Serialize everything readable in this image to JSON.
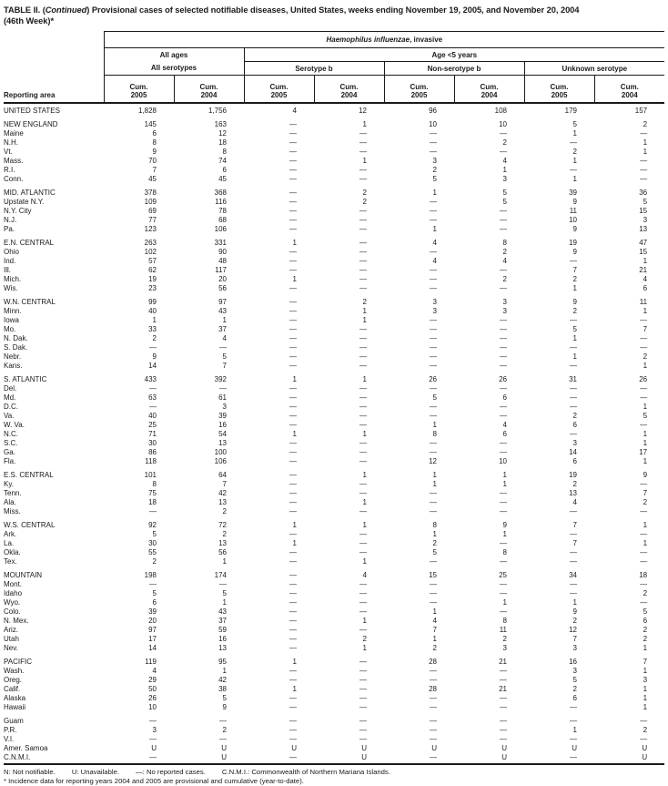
{
  "title": {
    "pre": "TABLE II. (",
    "continued": "Continued",
    "post": ") Provisional cases of selected notifiable diseases, United States, weeks ending November 19, 2005, and November 20, 2004",
    "line2": "(46th Week)*"
  },
  "header": {
    "reporting_area": "Reporting area",
    "disease_italic": "Haemophilus influenzae",
    "disease_rest": ", invasive",
    "all_ages": "All ages",
    "age_lt5": "Age <5 years",
    "groups": [
      "All serotypes",
      "Serotype b",
      "Non-serotype b",
      "Unknown serotype"
    ],
    "columns": [
      {
        "top": "Cum.",
        "year": "2005"
      },
      {
        "top": "Cum.",
        "year": "2004"
      },
      {
        "top": "Cum.",
        "year": "2005"
      },
      {
        "top": "Cum.",
        "year": "2004"
      },
      {
        "top": "Cum.",
        "year": "2005"
      },
      {
        "top": "Cum.",
        "year": "2004"
      },
      {
        "top": "Cum.",
        "year": "2005"
      },
      {
        "top": "Cum.",
        "year": "2004"
      }
    ]
  },
  "rows": [
    {
      "area": "UNITED STATES",
      "v": [
        "1,828",
        "1,756",
        "4",
        "12",
        "96",
        "108",
        "179",
        "157"
      ],
      "gap": false
    },
    {
      "area": "NEW ENGLAND",
      "v": [
        "145",
        "163",
        "—",
        "1",
        "10",
        "10",
        "5",
        "2"
      ],
      "gap": true
    },
    {
      "area": "Maine",
      "v": [
        "6",
        "12",
        "—",
        "—",
        "—",
        "—",
        "1",
        "—"
      ],
      "gap": false
    },
    {
      "area": "N.H.",
      "v": [
        "8",
        "18",
        "—",
        "—",
        "—",
        "2",
        "—",
        "1"
      ],
      "gap": false
    },
    {
      "area": "Vt.",
      "v": [
        "9",
        "8",
        "—",
        "—",
        "—",
        "—",
        "2",
        "1"
      ],
      "gap": false
    },
    {
      "area": "Mass.",
      "v": [
        "70",
        "74",
        "—",
        "1",
        "3",
        "4",
        "1",
        "—"
      ],
      "gap": false
    },
    {
      "area": "R.I.",
      "v": [
        "7",
        "6",
        "—",
        "—",
        "2",
        "1",
        "—",
        "—"
      ],
      "gap": false
    },
    {
      "area": "Conn.",
      "v": [
        "45",
        "45",
        "—",
        "—",
        "5",
        "3",
        "1",
        "—"
      ],
      "gap": false
    },
    {
      "area": "MID. ATLANTIC",
      "v": [
        "378",
        "368",
        "—",
        "2",
        "1",
        "5",
        "39",
        "36"
      ],
      "gap": true
    },
    {
      "area": "Upstate N.Y.",
      "v": [
        "109",
        "116",
        "—",
        "2",
        "—",
        "5",
        "9",
        "5"
      ],
      "gap": false
    },
    {
      "area": "N.Y. City",
      "v": [
        "69",
        "78",
        "—",
        "—",
        "—",
        "—",
        "11",
        "15"
      ],
      "gap": false
    },
    {
      "area": "N.J.",
      "v": [
        "77",
        "68",
        "—",
        "—",
        "—",
        "—",
        "10",
        "3"
      ],
      "gap": false
    },
    {
      "area": "Pa.",
      "v": [
        "123",
        "106",
        "—",
        "—",
        "1",
        "—",
        "9",
        "13"
      ],
      "gap": false
    },
    {
      "area": "E.N. CENTRAL",
      "v": [
        "263",
        "331",
        "1",
        "—",
        "4",
        "8",
        "19",
        "47"
      ],
      "gap": true
    },
    {
      "area": "Ohio",
      "v": [
        "102",
        "90",
        "—",
        "—",
        "—",
        "2",
        "9",
        "15"
      ],
      "gap": false
    },
    {
      "area": "Ind.",
      "v": [
        "57",
        "48",
        "—",
        "—",
        "4",
        "4",
        "—",
        "1"
      ],
      "gap": false
    },
    {
      "area": "Ill.",
      "v": [
        "62",
        "117",
        "—",
        "—",
        "—",
        "—",
        "7",
        "21"
      ],
      "gap": false
    },
    {
      "area": "Mich.",
      "v": [
        "19",
        "20",
        "1",
        "—",
        "—",
        "2",
        "2",
        "4"
      ],
      "gap": false
    },
    {
      "area": "Wis.",
      "v": [
        "23",
        "56",
        "—",
        "—",
        "—",
        "—",
        "1",
        "6"
      ],
      "gap": false
    },
    {
      "area": "W.N. CENTRAL",
      "v": [
        "99",
        "97",
        "—",
        "2",
        "3",
        "3",
        "9",
        "11"
      ],
      "gap": true
    },
    {
      "area": "Minn.",
      "v": [
        "40",
        "43",
        "—",
        "1",
        "3",
        "3",
        "2",
        "1"
      ],
      "gap": false
    },
    {
      "area": "Iowa",
      "v": [
        "1",
        "1",
        "—",
        "1",
        "—",
        "—",
        "—",
        "—"
      ],
      "gap": false
    },
    {
      "area": "Mo.",
      "v": [
        "33",
        "37",
        "—",
        "—",
        "—",
        "—",
        "5",
        "7"
      ],
      "gap": false
    },
    {
      "area": "N. Dak.",
      "v": [
        "2",
        "4",
        "—",
        "—",
        "—",
        "—",
        "1",
        "—"
      ],
      "gap": false
    },
    {
      "area": "S. Dak.",
      "v": [
        "—",
        "—",
        "—",
        "—",
        "—",
        "—",
        "—",
        "—"
      ],
      "gap": false
    },
    {
      "area": "Nebr.",
      "v": [
        "9",
        "5",
        "—",
        "—",
        "—",
        "—",
        "1",
        "2"
      ],
      "gap": false
    },
    {
      "area": "Kans.",
      "v": [
        "14",
        "7",
        "—",
        "—",
        "—",
        "—",
        "—",
        "1"
      ],
      "gap": false
    },
    {
      "area": "S. ATLANTIC",
      "v": [
        "433",
        "392",
        "1",
        "1",
        "26",
        "26",
        "31",
        "26"
      ],
      "gap": true
    },
    {
      "area": "Del.",
      "v": [
        "—",
        "—",
        "—",
        "—",
        "—",
        "—",
        "—",
        "—"
      ],
      "gap": false
    },
    {
      "area": "Md.",
      "v": [
        "63",
        "61",
        "—",
        "—",
        "5",
        "6",
        "—",
        "—"
      ],
      "gap": false
    },
    {
      "area": "D.C.",
      "v": [
        "—",
        "3",
        "—",
        "—",
        "—",
        "—",
        "—",
        "1"
      ],
      "gap": false
    },
    {
      "area": "Va.",
      "v": [
        "40",
        "39",
        "—",
        "—",
        "—",
        "—",
        "2",
        "5"
      ],
      "gap": false
    },
    {
      "area": "W. Va.",
      "v": [
        "25",
        "16",
        "—",
        "—",
        "1",
        "4",
        "6",
        "—"
      ],
      "gap": false
    },
    {
      "area": "N.C.",
      "v": [
        "71",
        "54",
        "1",
        "1",
        "8",
        "6",
        "—",
        "1"
      ],
      "gap": false
    },
    {
      "area": "S.C.",
      "v": [
        "30",
        "13",
        "—",
        "—",
        "—",
        "—",
        "3",
        "1"
      ],
      "gap": false
    },
    {
      "area": "Ga.",
      "v": [
        "86",
        "100",
        "—",
        "—",
        "—",
        "—",
        "14",
        "17"
      ],
      "gap": false
    },
    {
      "area": "Fla.",
      "v": [
        "118",
        "106",
        "—",
        "—",
        "12",
        "10",
        "6",
        "1"
      ],
      "gap": false
    },
    {
      "area": "E.S. CENTRAL",
      "v": [
        "101",
        "64",
        "—",
        "1",
        "1",
        "1",
        "19",
        "9"
      ],
      "gap": true
    },
    {
      "area": "Ky.",
      "v": [
        "8",
        "7",
        "—",
        "—",
        "1",
        "1",
        "2",
        "—"
      ],
      "gap": false
    },
    {
      "area": "Tenn.",
      "v": [
        "75",
        "42",
        "—",
        "—",
        "—",
        "—",
        "13",
        "7"
      ],
      "gap": false
    },
    {
      "area": "Ala.",
      "v": [
        "18",
        "13",
        "—",
        "1",
        "—",
        "—",
        "4",
        "2"
      ],
      "gap": false
    },
    {
      "area": "Miss.",
      "v": [
        "—",
        "2",
        "—",
        "—",
        "—",
        "—",
        "—",
        "—"
      ],
      "gap": false
    },
    {
      "area": "W.S. CENTRAL",
      "v": [
        "92",
        "72",
        "1",
        "1",
        "8",
        "9",
        "7",
        "1"
      ],
      "gap": true
    },
    {
      "area": "Ark.",
      "v": [
        "5",
        "2",
        "—",
        "—",
        "1",
        "1",
        "—",
        "—"
      ],
      "gap": false
    },
    {
      "area": "La.",
      "v": [
        "30",
        "13",
        "1",
        "—",
        "2",
        "—",
        "7",
        "1"
      ],
      "gap": false
    },
    {
      "area": "Okla.",
      "v": [
        "55",
        "56",
        "—",
        "—",
        "5",
        "8",
        "—",
        "—"
      ],
      "gap": false
    },
    {
      "area": "Tex.",
      "v": [
        "2",
        "1",
        "—",
        "1",
        "—",
        "—",
        "—",
        "—"
      ],
      "gap": false
    },
    {
      "area": "MOUNTAIN",
      "v": [
        "198",
        "174",
        "—",
        "4",
        "15",
        "25",
        "34",
        "18"
      ],
      "gap": true
    },
    {
      "area": "Mont.",
      "v": [
        "—",
        "—",
        "—",
        "—",
        "—",
        "—",
        "—",
        "—"
      ],
      "gap": false
    },
    {
      "area": "Idaho",
      "v": [
        "5",
        "5",
        "—",
        "—",
        "—",
        "—",
        "—",
        "2"
      ],
      "gap": false
    },
    {
      "area": "Wyo.",
      "v": [
        "6",
        "1",
        "—",
        "—",
        "—",
        "1",
        "1",
        "—"
      ],
      "gap": false
    },
    {
      "area": "Colo.",
      "v": [
        "39",
        "43",
        "—",
        "—",
        "1",
        "—",
        "9",
        "5"
      ],
      "gap": false
    },
    {
      "area": "N. Mex.",
      "v": [
        "20",
        "37",
        "—",
        "1",
        "4",
        "8",
        "2",
        "6"
      ],
      "gap": false
    },
    {
      "area": "Ariz.",
      "v": [
        "97",
        "59",
        "—",
        "—",
        "7",
        "11",
        "12",
        "2"
      ],
      "gap": false
    },
    {
      "area": "Utah",
      "v": [
        "17",
        "16",
        "—",
        "2",
        "1",
        "2",
        "7",
        "2"
      ],
      "gap": false
    },
    {
      "area": "Nev.",
      "v": [
        "14",
        "13",
        "—",
        "1",
        "2",
        "3",
        "3",
        "1"
      ],
      "gap": false
    },
    {
      "area": "PACIFIC",
      "v": [
        "119",
        "95",
        "1",
        "—",
        "28",
        "21",
        "16",
        "7"
      ],
      "gap": true
    },
    {
      "area": "Wash.",
      "v": [
        "4",
        "1",
        "—",
        "—",
        "—",
        "—",
        "3",
        "1"
      ],
      "gap": false
    },
    {
      "area": "Oreg.",
      "v": [
        "29",
        "42",
        "—",
        "—",
        "—",
        "—",
        "5",
        "3"
      ],
      "gap": false
    },
    {
      "area": "Calif.",
      "v": [
        "50",
        "38",
        "1",
        "—",
        "28",
        "21",
        "2",
        "1"
      ],
      "gap": false
    },
    {
      "area": "Alaska",
      "v": [
        "26",
        "5",
        "—",
        "—",
        "—",
        "—",
        "6",
        "1"
      ],
      "gap": false
    },
    {
      "area": "Hawaii",
      "v": [
        "10",
        "9",
        "—",
        "—",
        "—",
        "—",
        "—",
        "1"
      ],
      "gap": false
    },
    {
      "area": "Guam",
      "v": [
        "—",
        "—",
        "—",
        "—",
        "—",
        "—",
        "—",
        "—"
      ],
      "gap": true
    },
    {
      "area": "P.R.",
      "v": [
        "3",
        "2",
        "—",
        "—",
        "—",
        "—",
        "1",
        "2"
      ],
      "gap": false
    },
    {
      "area": "V.I.",
      "v": [
        "—",
        "—",
        "—",
        "—",
        "—",
        "—",
        "—",
        "—"
      ],
      "gap": false
    },
    {
      "area": "Amer. Samoa",
      "v": [
        "U",
        "U",
        "U",
        "U",
        "U",
        "U",
        "U",
        "U"
      ],
      "gap": false
    },
    {
      "area": "C.N.M.I.",
      "v": [
        "—",
        "U",
        "—",
        "U",
        "—",
        "U",
        "—",
        "U"
      ],
      "gap": false
    }
  ],
  "footnotes": {
    "line1": [
      "N: Not notifiable.",
      "U: Unavailable.",
      "—: No reported cases.",
      "C.N.M.I.: Commonwealth of Northern Mariana Islands."
    ],
    "line2": "* Incidence data for reporting years 2004 and 2005 are provisional and cumulative (year-to-date)."
  }
}
